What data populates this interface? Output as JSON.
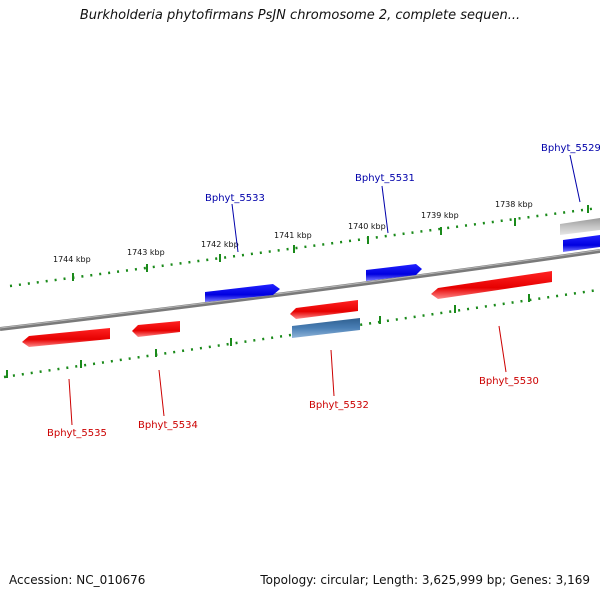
{
  "title": "Burkholderia phytofirmans PsJN chromosome 2, complete sequen...",
  "footer": {
    "accession": "Accession: NC_010676",
    "summary": "Topology: circular; Length: 3,625,999 bp; Genes: 3,169"
  },
  "colors": {
    "backbone": "#808080",
    "tick_dots": "#1a8a1a",
    "forward_gene": "#0000ee",
    "reverse_gene": "#ee0000",
    "selected_gene": "#4a7fb5",
    "other_gene": "#b0b0b0",
    "forward_label": "#0000aa",
    "reverse_label": "#cc0000"
  },
  "scale_ticks": [
    {
      "label": "1744 kbp"
    },
    {
      "label": "1743 kbp"
    },
    {
      "label": "1742 kbp"
    },
    {
      "label": "1741 kbp"
    },
    {
      "label": "1740 kbp"
    },
    {
      "label": "1739 kbp"
    },
    {
      "label": "1738 kbp"
    }
  ],
  "genes_forward": [
    {
      "label": "Bphyt_5533",
      "color": "forward"
    },
    {
      "label": "Bphyt_5531",
      "color": "forward"
    },
    {
      "label": "Bphyt_5529",
      "color": "forward"
    }
  ],
  "genes_reverse": [
    {
      "label": "Bphyt_5535",
      "color": "reverse"
    },
    {
      "label": "Bphyt_5534",
      "color": "reverse"
    },
    {
      "label": "Bphyt_5532",
      "color": "reverse"
    },
    {
      "label": "Bphyt_5530",
      "color": "reverse"
    }
  ],
  "genes_unlabeled": [
    {
      "color": "selected"
    },
    {
      "color": "other"
    }
  ]
}
